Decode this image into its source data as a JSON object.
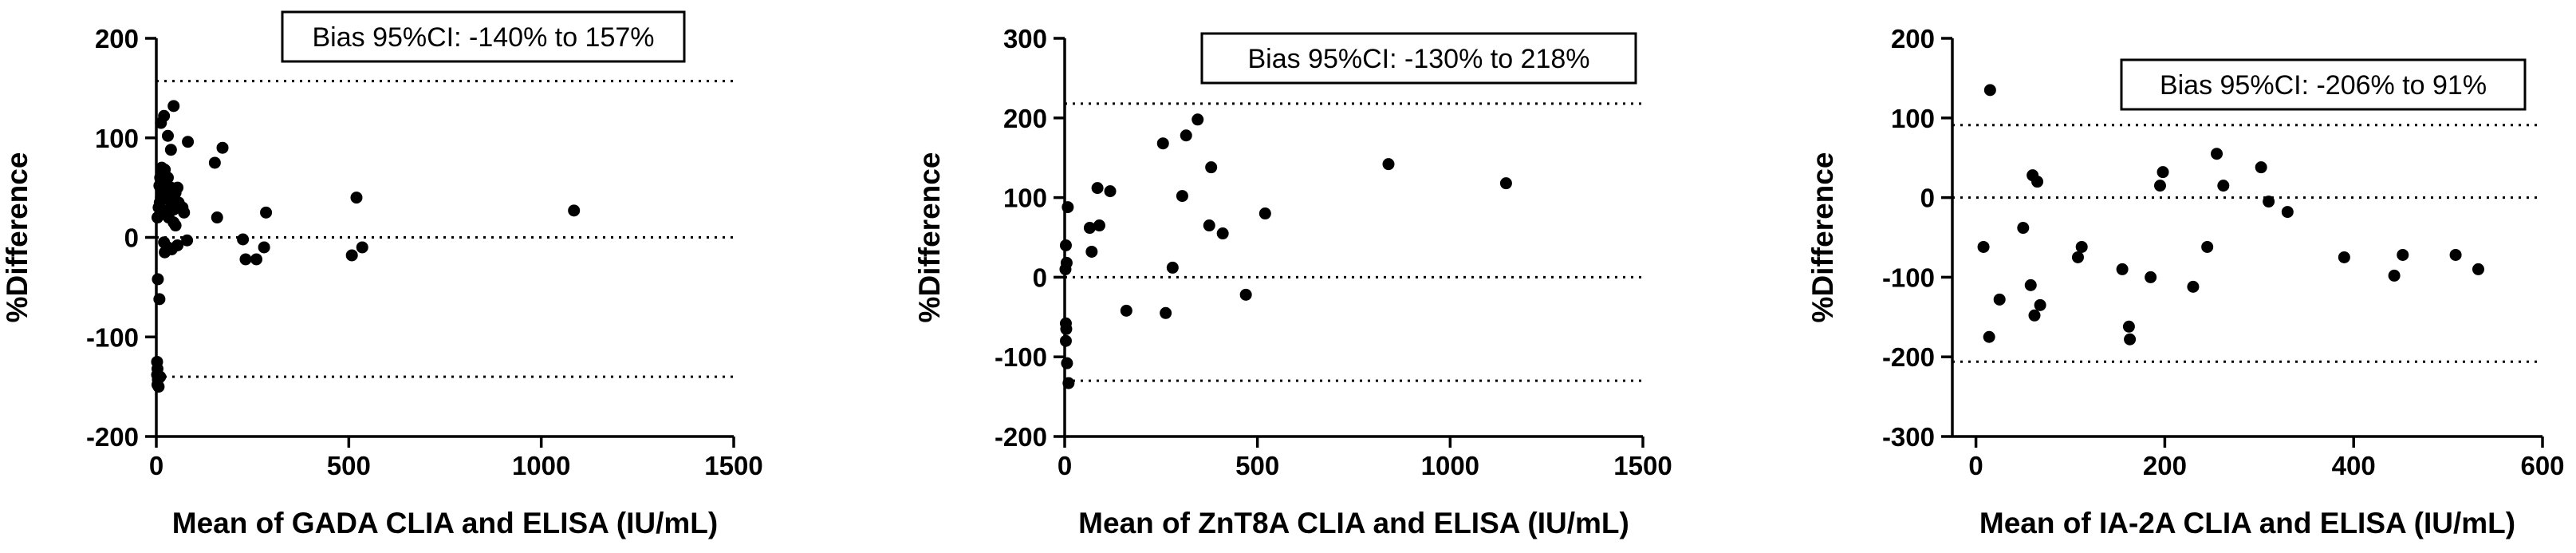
{
  "chart_data": [
    {
      "type": "scatter",
      "title": "",
      "xlabel": "Mean of GADA CLIA and ELISA (IU/mL)",
      "ylabel": "%Difference",
      "xlim": [
        0,
        1500
      ],
      "ylim": [
        -200,
        200
      ],
      "xticks": [
        0,
        500,
        1000,
        1500
      ],
      "yticks": [
        -200,
        -100,
        0,
        100,
        200
      ],
      "annotation": "Bias 95%CI: -140% to 157%",
      "reference_lines": [
        157,
        0,
        -140
      ],
      "grid": false,
      "points": [
        [
          2,
          -125
        ],
        [
          3,
          -132
        ],
        [
          2,
          -138
        ],
        [
          4,
          -143
        ],
        [
          3,
          -148
        ],
        [
          6,
          -150
        ],
        [
          10,
          -140
        ],
        [
          4,
          -42
        ],
        [
          8,
          -62
        ],
        [
          20,
          -5
        ],
        [
          22,
          -15
        ],
        [
          30,
          -10
        ],
        [
          40,
          -12
        ],
        [
          55,
          -8
        ],
        [
          80,
          -3
        ],
        [
          3,
          20
        ],
        [
          6,
          30
        ],
        [
          9,
          35
        ],
        [
          12,
          40
        ],
        [
          15,
          28
        ],
        [
          18,
          45
        ],
        [
          8,
          52
        ],
        [
          10,
          60
        ],
        [
          14,
          70
        ],
        [
          22,
          68
        ],
        [
          26,
          55
        ],
        [
          30,
          60
        ],
        [
          33,
          38
        ],
        [
          35,
          42
        ],
        [
          38,
          50
        ],
        [
          40,
          32
        ],
        [
          42,
          30
        ],
        [
          45,
          28
        ],
        [
          48,
          38
        ],
        [
          50,
          45
        ],
        [
          55,
          50
        ],
        [
          58,
          35
        ],
        [
          60,
          30
        ],
        [
          28,
          25
        ],
        [
          32,
          20
        ],
        [
          45,
          15
        ],
        [
          50,
          12
        ],
        [
          68,
          30
        ],
        [
          72,
          25
        ],
        [
          12,
          115
        ],
        [
          20,
          122
        ],
        [
          45,
          132
        ],
        [
          30,
          102
        ],
        [
          38,
          88
        ],
        [
          82,
          96
        ],
        [
          152,
          75
        ],
        [
          172,
          90
        ],
        [
          158,
          20
        ],
        [
          225,
          -2
        ],
        [
          232,
          -22
        ],
        [
          260,
          -22
        ],
        [
          280,
          -10
        ],
        [
          285,
          25
        ],
        [
          520,
          40
        ],
        [
          508,
          -18
        ],
        [
          535,
          -10
        ],
        [
          1085,
          27
        ]
      ]
    },
    {
      "type": "scatter",
      "title": "",
      "xlabel": "Mean of ZnT8A CLIA and ELISA (IU/mL)",
      "ylabel": "%Difference",
      "xlim": [
        0,
        1500
      ],
      "ylim": [
        -200,
        300
      ],
      "xticks": [
        0,
        500,
        1000,
        1500
      ],
      "yticks": [
        -200,
        -100,
        0,
        100,
        200,
        300
      ],
      "annotation": "Bias 95%CI: -130% to 218%",
      "reference_lines": [
        218,
        0,
        -130
      ],
      "grid": false,
      "points": [
        [
          3,
          -58
        ],
        [
          4,
          -65
        ],
        [
          3,
          -80
        ],
        [
          6,
          -108
        ],
        [
          10,
          -133
        ],
        [
          2,
          10
        ],
        [
          5,
          18
        ],
        [
          3,
          40
        ],
        [
          8,
          88
        ],
        [
          65,
          62
        ],
        [
          70,
          32
        ],
        [
          90,
          65
        ],
        [
          85,
          112
        ],
        [
          118,
          108
        ],
        [
          160,
          -42
        ],
        [
          255,
          168
        ],
        [
          262,
          -45
        ],
        [
          280,
          12
        ],
        [
          305,
          102
        ],
        [
          315,
          178
        ],
        [
          345,
          198
        ],
        [
          375,
          65
        ],
        [
          380,
          138
        ],
        [
          410,
          55
        ],
        [
          470,
          -22
        ],
        [
          520,
          80
        ],
        [
          840,
          142
        ],
        [
          1145,
          118
        ]
      ]
    },
    {
      "type": "scatter",
      "title": "",
      "xlabel": "Mean of IA-2A CLIA and ELISA (IU/mL)",
      "ylabel": "%Difference",
      "xlim": [
        -25,
        600
      ],
      "ylim": [
        -300,
        200
      ],
      "xticks": [
        0,
        200,
        400,
        600
      ],
      "yticks": [
        -300,
        -200,
        -100,
        0,
        100,
        200
      ],
      "annotation": "Bias 95%CI: -206% to 91%",
      "reference_lines": [
        91,
        0,
        -206
      ],
      "grid": false,
      "points": [
        [
          8,
          -62
        ],
        [
          14,
          -175
        ],
        [
          25,
          -128
        ],
        [
          15,
          135
        ],
        [
          50,
          -38
        ],
        [
          58,
          -110
        ],
        [
          62,
          -148
        ],
        [
          68,
          -135
        ],
        [
          60,
          28
        ],
        [
          65,
          20
        ],
        [
          108,
          -75
        ],
        [
          112,
          -62
        ],
        [
          155,
          -90
        ],
        [
          162,
          -162
        ],
        [
          163,
          -178
        ],
        [
          185,
          -100
        ],
        [
          195,
          15
        ],
        [
          198,
          32
        ],
        [
          230,
          -112
        ],
        [
          245,
          -62
        ],
        [
          255,
          55
        ],
        [
          262,
          15
        ],
        [
          302,
          38
        ],
        [
          310,
          -5
        ],
        [
          330,
          -18
        ],
        [
          390,
          -75
        ],
        [
          443,
          -98
        ],
        [
          452,
          -72
        ],
        [
          508,
          -72
        ],
        [
          532,
          -90
        ]
      ]
    }
  ]
}
